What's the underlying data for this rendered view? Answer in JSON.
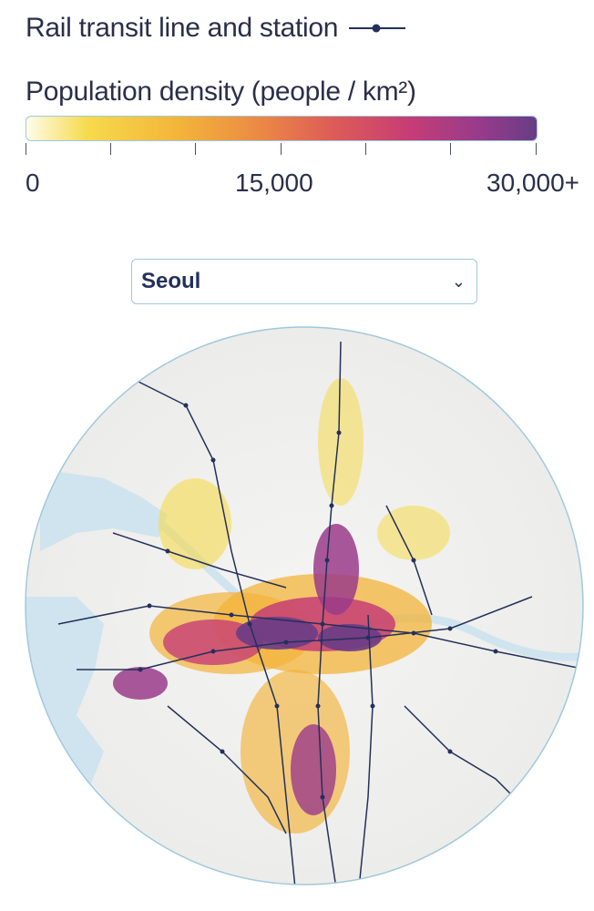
{
  "legend": {
    "rail_label": "Rail transit line and station",
    "rail_symbol_icon": "rail-line-station-icon",
    "density_title": "Population density (people / km²)",
    "scale": {
      "tick_labels": [
        "0",
        "15,000",
        "30,000+"
      ],
      "min": 0,
      "mid": 15000,
      "max": 30000,
      "colors": [
        "#fffce9",
        "#f6da4c",
        "#f3b43a",
        "#ec8b44",
        "#dd5c57",
        "#c63d75",
        "#9a3b8a",
        "#693c86"
      ]
    }
  },
  "city_select": {
    "value": "Seoul",
    "icon": "chevron-down-icon"
  },
  "map": {
    "colors": {
      "land": "#f2f2f0",
      "water": "#cfe4ee",
      "rail": "#23305a",
      "border": "#9fc9dc"
    }
  }
}
